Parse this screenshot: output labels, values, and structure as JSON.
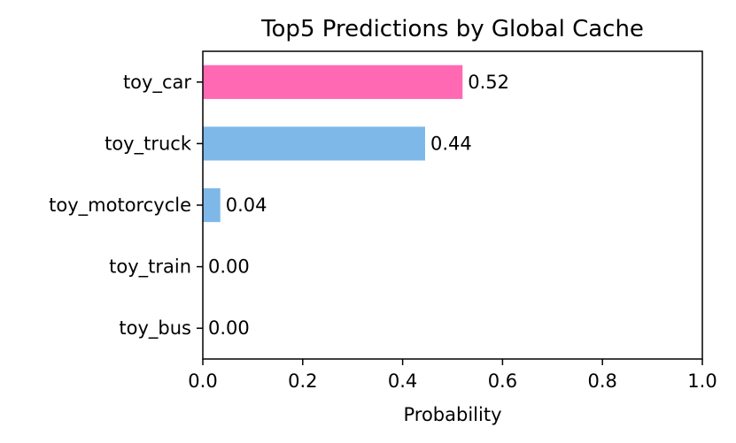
{
  "chart_data": {
    "type": "bar",
    "orientation": "horizontal",
    "title": "Top5 Predictions by Global Cache",
    "xlabel": "Probability",
    "ylabel": "",
    "xlim": [
      0.0,
      1.0
    ],
    "x_ticks": [
      "0.0",
      "0.2",
      "0.4",
      "0.6",
      "0.8",
      "1.0"
    ],
    "categories": [
      "toy_car",
      "toy_truck",
      "toy_motorcycle",
      "toy_train",
      "toy_bus"
    ],
    "values": [
      0.52,
      0.445,
      0.035,
      0.0,
      0.0
    ],
    "value_labels": [
      "0.52",
      "0.44",
      "0.04",
      "0.00",
      "0.00"
    ],
    "colors": [
      "#ff69b4",
      "#7eb8e8",
      "#7eb8e8",
      "#7eb8e8",
      "#7eb8e8"
    ],
    "grid": false,
    "legend": "none"
  }
}
